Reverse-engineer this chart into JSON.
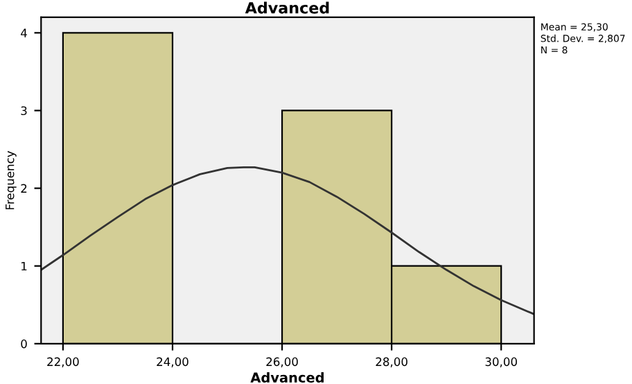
{
  "chart_data": {
    "type": "histogram",
    "title": "Advanced",
    "xlabel": "Advanced",
    "ylabel": "Frequency",
    "bins": [
      22,
      24,
      26,
      28,
      30
    ],
    "values": [
      4,
      0,
      3,
      1
    ],
    "color": "#d3ce96",
    "series": [
      {
        "type": "line",
        "color": "#333333",
        "x": [
          21.6,
          22,
          22.5,
          23,
          23.5,
          24,
          24.5,
          25,
          25.3,
          25.5,
          26,
          26.5,
          27,
          27.5,
          28,
          28.5,
          29,
          29.5,
          30,
          30.6
        ],
        "values": [
          0.95,
          1.14,
          1.39,
          1.63,
          1.86,
          2.04,
          2.18,
          2.26,
          2.27,
          2.27,
          2.2,
          2.08,
          1.89,
          1.67,
          1.43,
          1.18,
          0.95,
          0.74,
          0.56,
          0.38
        ]
      }
    ],
    "xlim": [
      21.6,
      30.6
    ],
    "ylim": [
      0,
      4.2
    ],
    "xticks": [
      {
        "value": 22,
        "label": "22,00"
      },
      {
        "value": 24,
        "label": "24,00"
      },
      {
        "value": 26,
        "label": "26,00"
      },
      {
        "value": 28,
        "label": "28,00"
      },
      {
        "value": 30,
        "label": "30,00"
      }
    ],
    "yticks": [
      0,
      1,
      2,
      3,
      4
    ],
    "annotations": [
      "Mean = 25,30",
      "Std. Dev. = 2,807",
      "N = 8"
    ],
    "grid": false,
    "legend": false
  }
}
